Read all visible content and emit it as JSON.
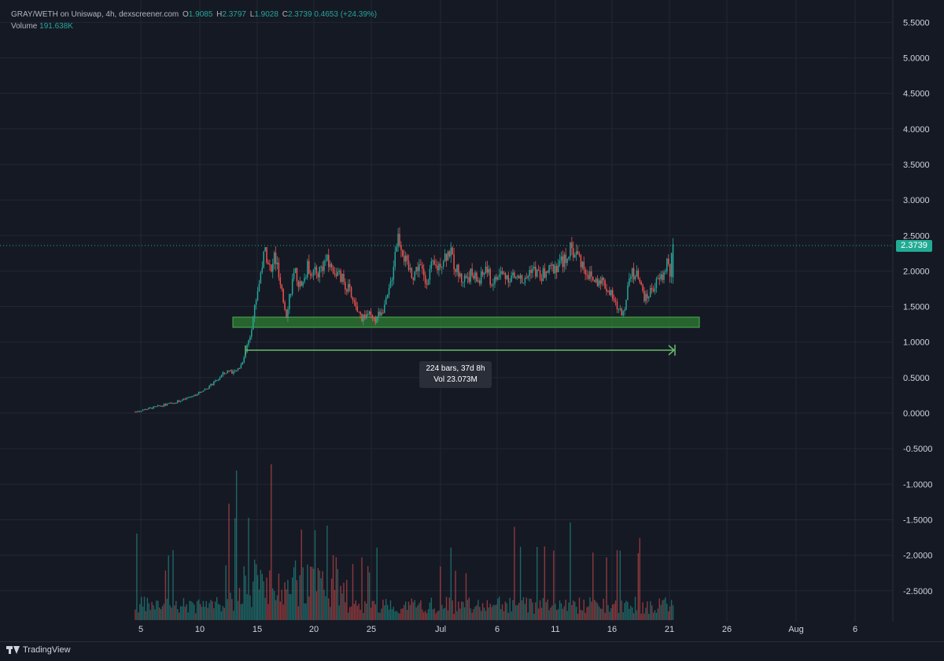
{
  "legend": {
    "pair": "GRAY/WETH on Uniswap, 4h, dexscreener.com",
    "o_key": "O",
    "o_val": "1.9085",
    "h_key": "H",
    "h_val": "2.3797",
    "l_key": "L",
    "l_val": "1.9028",
    "c_key": "C",
    "c_val": "2.3739",
    "change": "0.4653 (+24.39%)",
    "volume_key": "Volume",
    "volume_val": "191.638K"
  },
  "price_tag": "2.3739",
  "measure": {
    "bars": "224 bars, 37d 8h",
    "vol": "Vol 23.073M"
  },
  "footer": {
    "brand": "TradingView"
  },
  "colors": {
    "up": "#26a69a",
    "down": "#ef5350",
    "zone": "#2e7d32",
    "measure": "#66bb6a",
    "grid": "#242733",
    "background": "#151924"
  },
  "chart_data": {
    "type": "candlestick",
    "series": [
      {
        "name": "GRAY/WETH",
        "close": 2.3739
      }
    ],
    "y_ticks": [
      "5.5000",
      "5.0000",
      "4.5000",
      "4.0000",
      "3.5000",
      "3.0000",
      "2.5000",
      "2.0000",
      "1.5000",
      "1.0000",
      "0.5000",
      "0.0000",
      "-0.5000",
      "-1.0000",
      "-1.5000",
      "-2.0000",
      "-2.5000"
    ],
    "ylim": [
      -2.9,
      5.7
    ],
    "x_ticks": [
      "5",
      "10",
      "15",
      "20",
      "25",
      "Jul",
      "6",
      "11",
      "16",
      "21",
      "26",
      "Aug",
      "6"
    ],
    "current_price": 2.3739,
    "support_zone": [
      1.2,
      1.34
    ],
    "grid": true,
    "path": [
      [
        0,
        0.02
      ],
      [
        8,
        0.06
      ],
      [
        16,
        0.1
      ],
      [
        24,
        0.14
      ],
      [
        32,
        0.19
      ],
      [
        40,
        0.26
      ],
      [
        48,
        0.36
      ],
      [
        54,
        0.46
      ],
      [
        58,
        0.55
      ],
      [
        62,
        0.6
      ],
      [
        66,
        0.57
      ],
      [
        70,
        0.68
      ],
      [
        72,
        0.8
      ],
      [
        74,
        0.95
      ],
      [
        76,
        1.12
      ],
      [
        78,
        1.35
      ],
      [
        80,
        1.62
      ],
      [
        82,
        1.85
      ],
      [
        84,
        2.1
      ],
      [
        86,
        2.3
      ],
      [
        88,
        2.15
      ],
      [
        90,
        1.95
      ],
      [
        92,
        2.22
      ],
      [
        94,
        2.05
      ],
      [
        96,
        1.75
      ],
      [
        98,
        1.58
      ],
      [
        100,
        1.4
      ],
      [
        102,
        1.65
      ],
      [
        104,
        1.85
      ],
      [
        106,
        1.95
      ],
      [
        110,
        1.75
      ],
      [
        114,
        2.05
      ],
      [
        120,
        1.95
      ],
      [
        126,
        2.15
      ],
      [
        132,
        2.0
      ],
      [
        138,
        1.85
      ],
      [
        142,
        1.7
      ],
      [
        146,
        1.45
      ],
      [
        150,
        1.35
      ],
      [
        154,
        1.4
      ],
      [
        158,
        1.28
      ],
      [
        162,
        1.42
      ],
      [
        166,
        1.55
      ],
      [
        168,
        1.7
      ],
      [
        170,
        1.95
      ],
      [
        172,
        2.3
      ],
      [
        174,
        2.5
      ],
      [
        176,
        2.38
      ],
      [
        178,
        2.2
      ],
      [
        180,
        2.05
      ],
      [
        184,
        1.95
      ],
      [
        188,
        2.1
      ],
      [
        192,
        1.85
      ],
      [
        196,
        2.05
      ],
      [
        200,
        2.05
      ],
      [
        204,
        2.2
      ],
      [
        208,
        2.28
      ],
      [
        212,
        2.05
      ],
      [
        216,
        1.88
      ],
      [
        222,
        1.95
      ],
      [
        228,
        1.85
      ],
      [
        232,
        2.05
      ],
      [
        236,
        1.82
      ],
      [
        242,
        1.96
      ],
      [
        248,
        1.92
      ],
      [
        254,
        1.9
      ],
      [
        258,
        1.85
      ],
      [
        262,
        2.05
      ],
      [
        268,
        1.92
      ],
      [
        274,
        2.0
      ],
      [
        280,
        2.1
      ],
      [
        284,
        2.15
      ],
      [
        288,
        2.3
      ],
      [
        292,
        2.25
      ],
      [
        296,
        2.1
      ],
      [
        300,
        1.95
      ],
      [
        304,
        1.85
      ],
      [
        308,
        1.9
      ],
      [
        314,
        1.7
      ],
      [
        318,
        1.52
      ],
      [
        322,
        1.4
      ],
      [
        324,
        1.5
      ],
      [
        326,
        1.85
      ],
      [
        328,
        2.02
      ],
      [
        332,
        1.92
      ],
      [
        336,
        1.7
      ],
      [
        338,
        1.6
      ],
      [
        342,
        1.75
      ],
      [
        346,
        1.85
      ],
      [
        350,
        1.95
      ],
      [
        352,
        2.15
      ],
      [
        354,
        1.95
      ],
      [
        356,
        2.35
      ]
    ]
  }
}
